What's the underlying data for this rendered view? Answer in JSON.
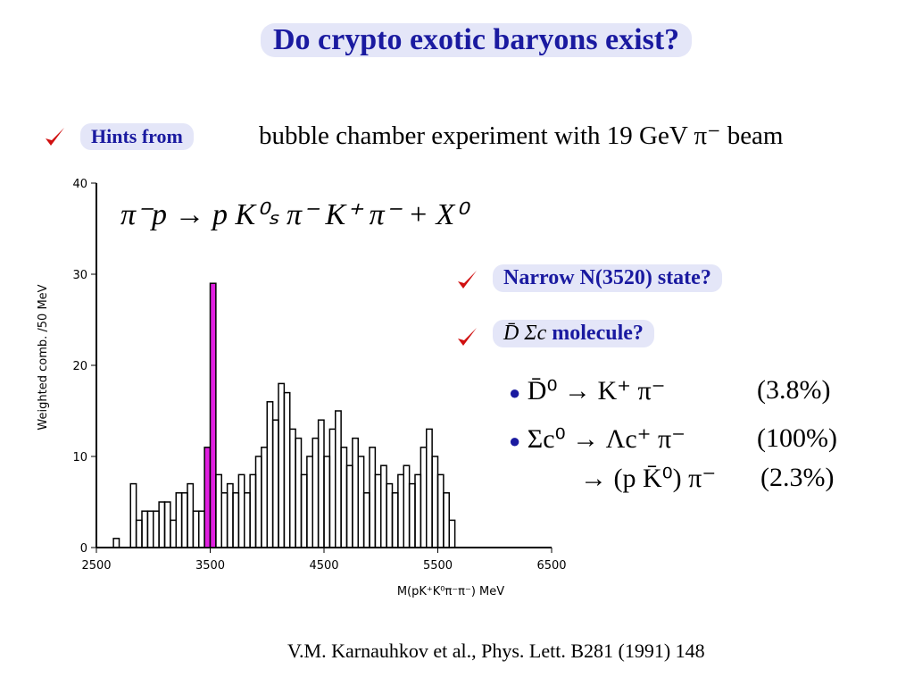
{
  "slide": {
    "title": "Do crypto exotic baryons exist?",
    "hint_tag": "Hints from",
    "hint_text": "bubble chamber experiment with 19 GeV π⁻ beam",
    "reaction": "π⁻p → p K⁰ₛ π⁻ K⁺ π⁻ + X⁰",
    "question_1": "Narrow N(3520) state?",
    "question_2_symbol": "D̄ Σc",
    "question_2_text": "molecule?",
    "decays": [
      {
        "lhs": "D̄⁰ → K⁺ π⁻",
        "br": "(3.8%)"
      },
      {
        "lhs": "Σc⁰ → Λc⁺ π⁻",
        "br": "(100%)"
      },
      {
        "lhs": "→ (p K̄⁰) π⁻",
        "br": "(2.3%)"
      }
    ],
    "citation": "V.M. Karnauhkov et al., Phys. Lett. B281 (1991) 148"
  },
  "chart_data": {
    "type": "histogram",
    "xlabel": "M(pK⁺K⁰π⁻π⁻) MeV",
    "ylabel": "Weighted comb. /50 MeV",
    "bins": [
      2650,
      2700,
      2750,
      2800,
      2850,
      2900,
      2950,
      3000,
      3050,
      3100,
      3150,
      3200,
      3250,
      3300,
      3350,
      3400,
      3450,
      3500,
      3550,
      3600,
      3650,
      3700,
      3750,
      3800,
      3850,
      3900,
      3950,
      4000,
      4050,
      4100,
      4150,
      4200,
      4250,
      4300,
      4350,
      4400,
      4450,
      4500,
      4550,
      4600,
      4650,
      4700,
      4750,
      4800,
      4850,
      4900,
      4950,
      5000,
      5050,
      5100,
      5150,
      5200,
      5250,
      5300,
      5350,
      5400,
      5450,
      5500,
      5550,
      5600,
      5650
    ],
    "values": [
      1,
      0,
      0,
      7,
      3,
      4,
      4,
      4,
      5,
      5,
      3,
      6,
      6,
      7,
      4,
      4,
      11,
      29,
      8,
      6,
      7,
      6,
      8,
      6,
      8,
      10,
      11,
      16,
      14,
      18,
      17,
      13,
      12,
      8,
      10,
      12,
      14,
      10,
      13,
      15,
      11,
      9,
      12,
      10,
      6,
      11,
      8,
      9,
      7,
      6,
      8,
      9,
      7,
      8,
      11,
      13,
      10,
      8,
      6,
      3
    ],
    "color": "#000000",
    "highlight_color": "#e020e0",
    "highlight_bins": [
      3450,
      3550
    ],
    "xlim": [
      2500,
      6500
    ],
    "ylim": [
      0,
      40
    ],
    "xticks": [
      2500,
      3500,
      4500,
      5500,
      6500
    ],
    "yticks": [
      0,
      10,
      20,
      30,
      40
    ]
  }
}
